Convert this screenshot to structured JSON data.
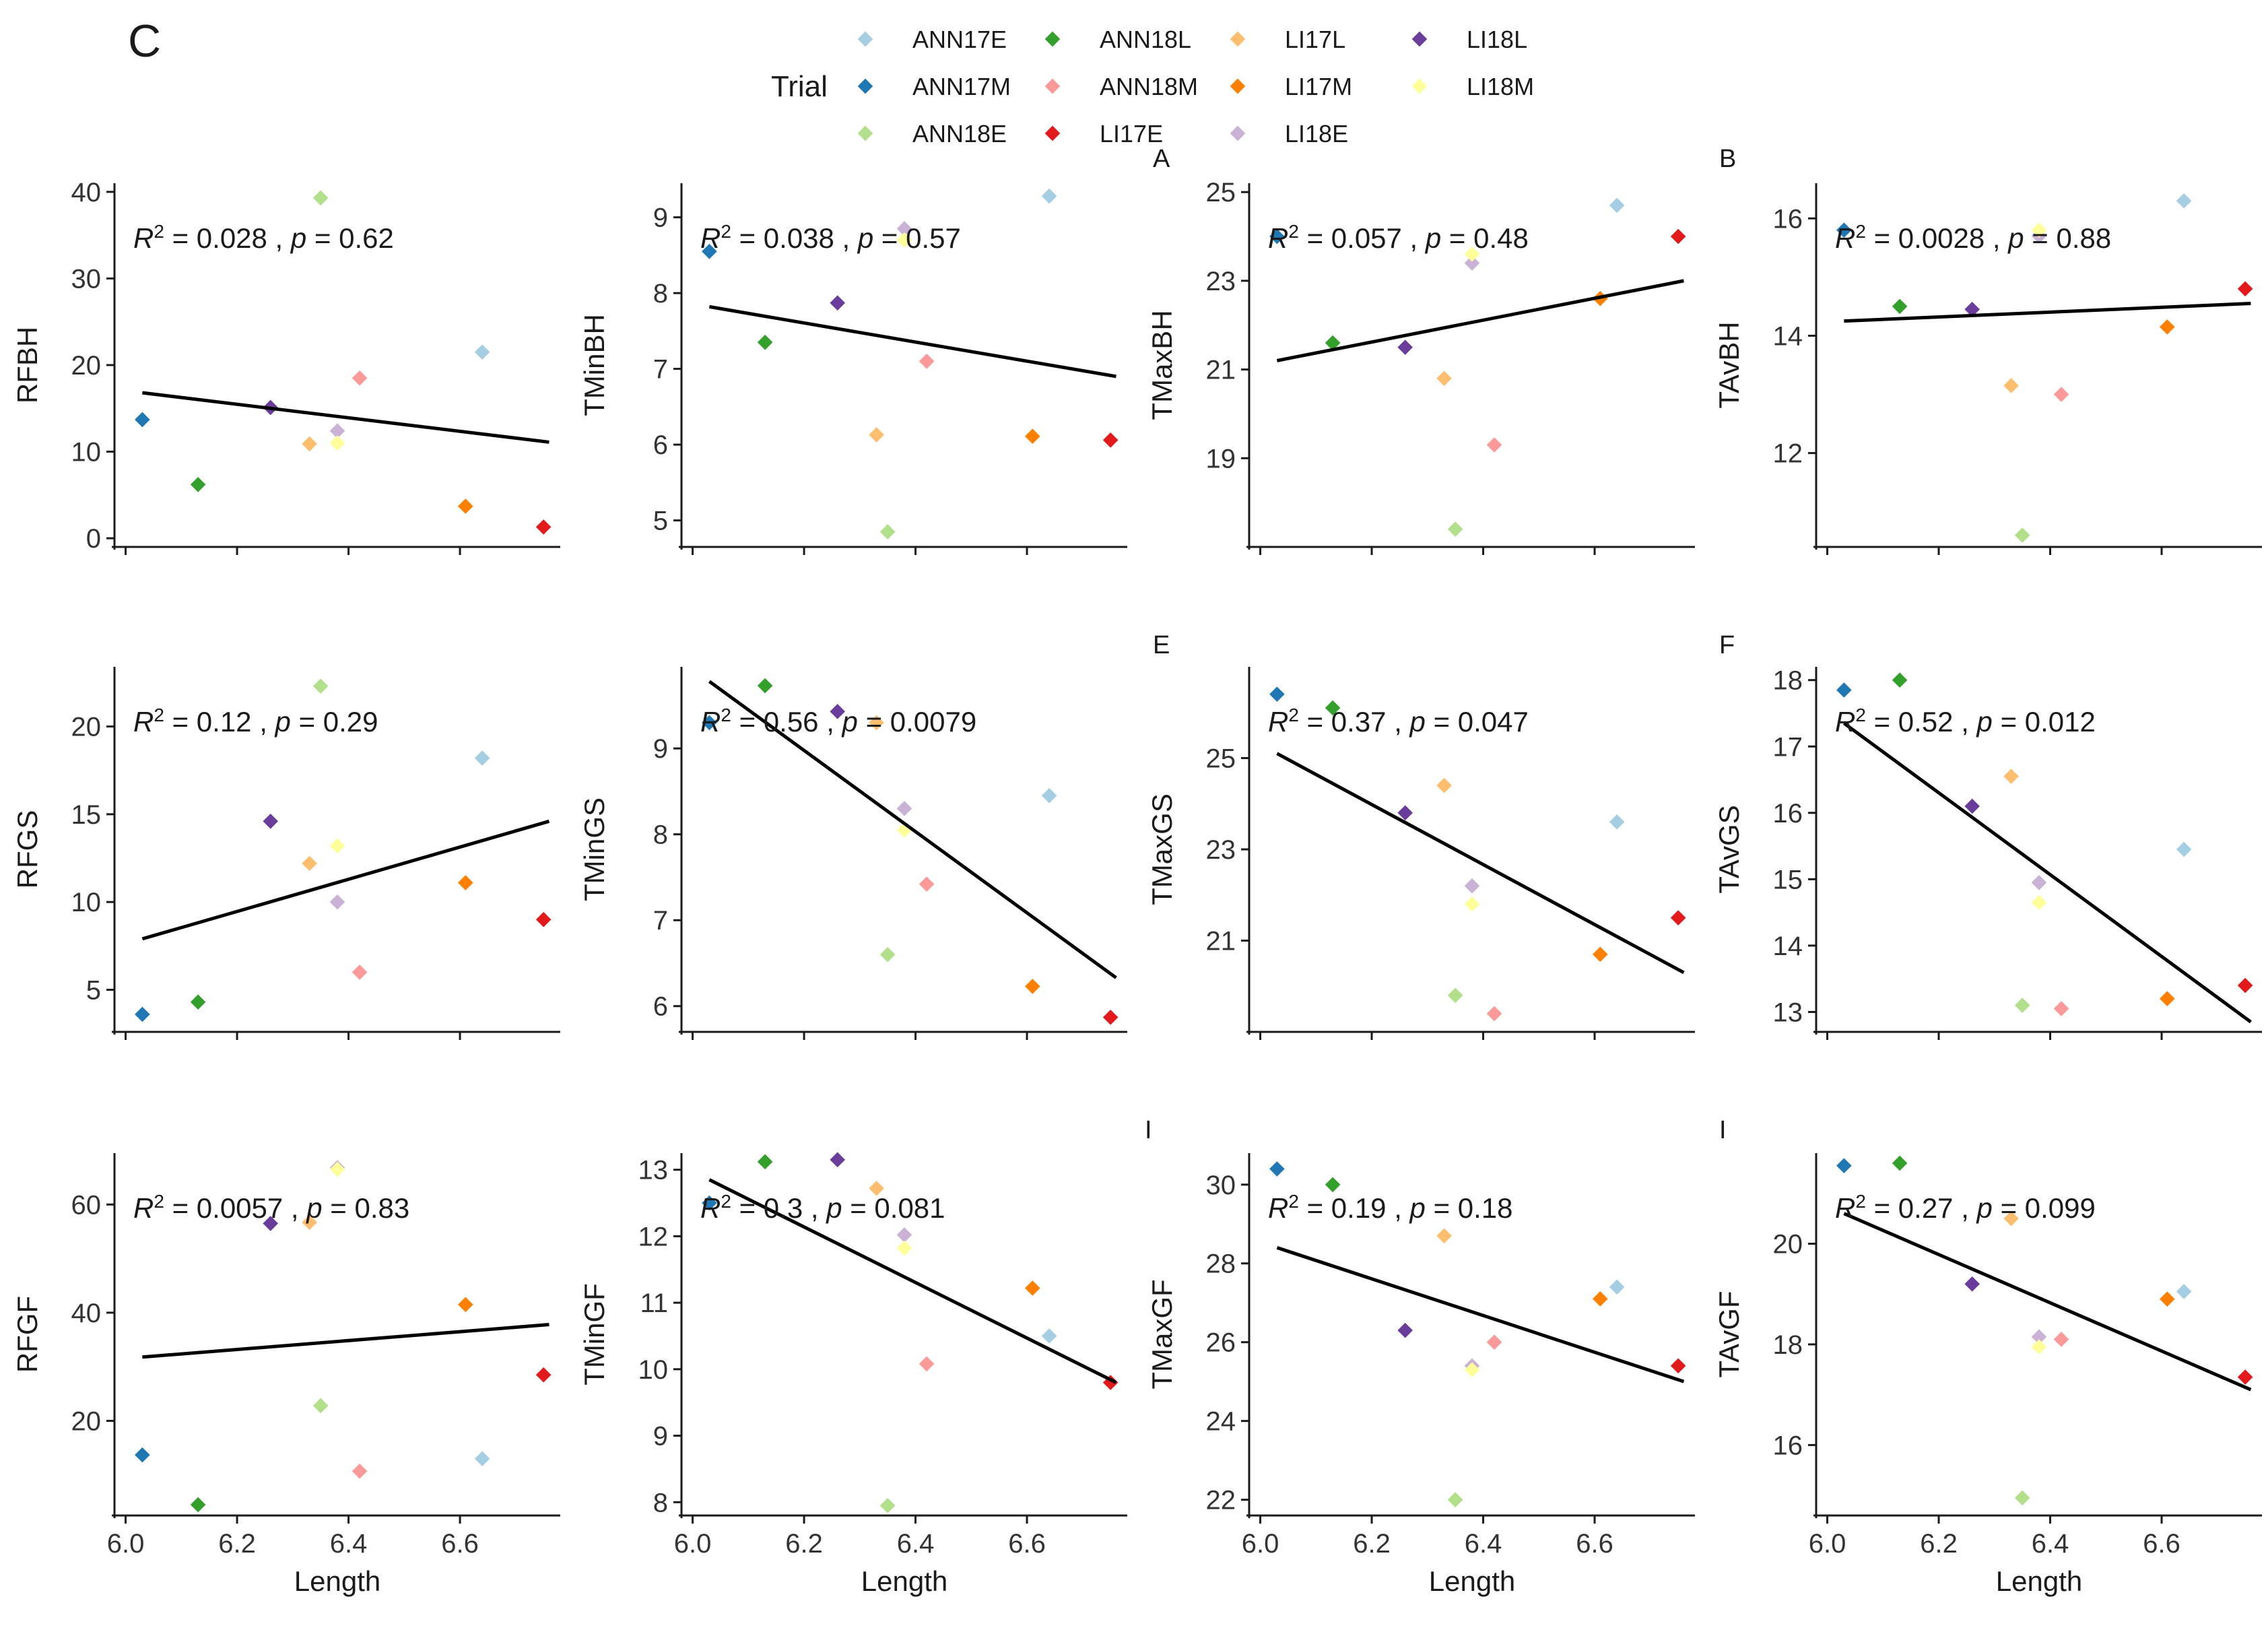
{
  "figure": {
    "panel_label": "C",
    "legend": {
      "title": "Trial",
      "entries": [
        {
          "name": "ANN17E",
          "color": "#a6cee3"
        },
        {
          "name": "ANN17M",
          "color": "#1f78b4"
        },
        {
          "name": "ANN18E",
          "color": "#b2df8a"
        },
        {
          "name": "ANN18L",
          "color": "#33a02c"
        },
        {
          "name": "ANN18M",
          "color": "#fb9a99"
        },
        {
          "name": "LI17E",
          "color": "#e31a1c"
        },
        {
          "name": "LI17L",
          "color": "#fdbf6f"
        },
        {
          "name": "LI17M",
          "color": "#ff7f00"
        },
        {
          "name": "LI18E",
          "color": "#cab2d6"
        },
        {
          "name": "LI18L",
          "color": "#6a3d9a"
        },
        {
          "name": "LI18M",
          "color": "#ffff99"
        }
      ]
    },
    "stray_marks": [
      "A",
      "B",
      "E",
      "F",
      "I",
      "I"
    ]
  },
  "chart_data": [
    {
      "type": "scatter",
      "row": 0,
      "col": 0,
      "ylabel": "RFBH",
      "xlabel": "",
      "xlim": [
        5.98,
        6.78
      ],
      "ylim": [
        -1,
        41
      ],
      "yticks": [
        0,
        10,
        20,
        30,
        40
      ],
      "xticks": [
        6.0,
        6.2,
        6.4,
        6.6
      ],
      "show_xtick_labels": false,
      "annotation": {
        "r2": "0.028",
        "p": "0.62"
      },
      "fit": [
        [
          6.03,
          16.8
        ],
        [
          6.76,
          11.1
        ]
      ],
      "points": [
        [
          "ANN17E",
          6.64,
          21.5
        ],
        [
          "ANN17M",
          6.03,
          13.7
        ],
        [
          "ANN18E",
          6.35,
          39.3
        ],
        [
          "ANN18L",
          6.13,
          6.2
        ],
        [
          "ANN18M",
          6.42,
          18.5
        ],
        [
          "LI17E",
          6.75,
          1.3
        ],
        [
          "LI17L",
          6.33,
          10.9
        ],
        [
          "LI17M",
          6.61,
          3.7
        ],
        [
          "LI18E",
          6.38,
          12.4
        ],
        [
          "LI18L",
          6.26,
          15.1
        ],
        [
          "LI18M",
          6.38,
          11.0
        ]
      ]
    },
    {
      "type": "scatter",
      "row": 0,
      "col": 1,
      "ylabel": "TMinBH",
      "xlabel": "",
      "xlim": [
        5.98,
        6.78
      ],
      "ylim": [
        4.65,
        9.45
      ],
      "yticks": [
        5,
        6,
        7,
        8,
        9
      ],
      "xticks": [
        6.0,
        6.2,
        6.4,
        6.6
      ],
      "show_xtick_labels": false,
      "annotation": {
        "r2": "0.038",
        "p": "0.57"
      },
      "fit": [
        [
          6.03,
          7.82
        ],
        [
          6.76,
          6.9
        ]
      ],
      "points": [
        [
          "ANN17E",
          6.64,
          9.28
        ],
        [
          "ANN17M",
          6.03,
          8.55
        ],
        [
          "ANN18E",
          6.35,
          4.85
        ],
        [
          "ANN18L",
          6.13,
          7.35
        ],
        [
          "ANN18M",
          6.42,
          7.1
        ],
        [
          "LI17E",
          6.75,
          6.06
        ],
        [
          "LI17L",
          6.33,
          6.13
        ],
        [
          "LI17M",
          6.61,
          6.11
        ],
        [
          "LI18E",
          6.38,
          8.85
        ],
        [
          "LI18L",
          6.26,
          7.87
        ],
        [
          "LI18M",
          6.38,
          8.7
        ]
      ]
    },
    {
      "type": "scatter",
      "row": 0,
      "col": 2,
      "ylabel": "TMaxBH",
      "xlabel": "",
      "xlim": [
        5.98,
        6.78
      ],
      "ylim": [
        17.0,
        25.2
      ],
      "yticks": [
        19,
        21,
        23,
        25
      ],
      "xticks": [
        6.0,
        6.2,
        6.4,
        6.6
      ],
      "show_xtick_labels": false,
      "annotation": {
        "r2": "0.057",
        "p": "0.48"
      },
      "fit": [
        [
          6.03,
          21.2
        ],
        [
          6.76,
          23.0
        ]
      ],
      "points": [
        [
          "ANN17E",
          6.64,
          24.7
        ],
        [
          "ANN17M",
          6.03,
          24.0
        ],
        [
          "ANN18E",
          6.35,
          17.4
        ],
        [
          "ANN18L",
          6.13,
          21.6
        ],
        [
          "ANN18M",
          6.42,
          19.3
        ],
        [
          "LI17E",
          6.75,
          24.0
        ],
        [
          "LI17L",
          6.33,
          20.8
        ],
        [
          "LI17M",
          6.61,
          22.6
        ],
        [
          "LI18E",
          6.38,
          23.4
        ],
        [
          "LI18L",
          6.26,
          21.5
        ],
        [
          "LI18M",
          6.38,
          23.6
        ]
      ]
    },
    {
      "type": "scatter",
      "row": 0,
      "col": 3,
      "ylabel": "TAvBH",
      "xlabel": "",
      "xlim": [
        5.98,
        6.78
      ],
      "ylim": [
        10.4,
        16.6
      ],
      "yticks": [
        12,
        14,
        16
      ],
      "xticks": [
        6.0,
        6.2,
        6.4,
        6.6
      ],
      "show_xtick_labels": false,
      "annotation": {
        "r2": "0.0028",
        "p": "0.88"
      },
      "fit": [
        [
          6.03,
          14.25
        ],
        [
          6.76,
          14.55
        ]
      ],
      "points": [
        [
          "ANN17E",
          6.64,
          16.3
        ],
        [
          "ANN17M",
          6.03,
          15.8
        ],
        [
          "ANN18E",
          6.35,
          10.6
        ],
        [
          "ANN18L",
          6.13,
          14.5
        ],
        [
          "ANN18M",
          6.42,
          13.0
        ],
        [
          "LI17E",
          6.75,
          14.8
        ],
        [
          "LI17L",
          6.33,
          13.15
        ],
        [
          "LI17M",
          6.61,
          14.15
        ],
        [
          "LI18E",
          6.38,
          15.7
        ],
        [
          "LI18L",
          6.26,
          14.45
        ],
        [
          "LI18M",
          6.38,
          15.8
        ]
      ]
    },
    {
      "type": "scatter",
      "row": 1,
      "col": 0,
      "ylabel": "RFGS",
      "xlabel": "",
      "xlim": [
        5.98,
        6.78
      ],
      "ylim": [
        2.6,
        23.4
      ],
      "yticks": [
        5,
        10,
        15,
        20
      ],
      "xticks": [
        6.0,
        6.2,
        6.4,
        6.6
      ],
      "show_xtick_labels": false,
      "annotation": {
        "r2": "0.12",
        "p": "0.29"
      },
      "fit": [
        [
          6.03,
          7.9
        ],
        [
          6.76,
          14.6
        ]
      ],
      "points": [
        [
          "ANN17E",
          6.64,
          18.2
        ],
        [
          "ANN17M",
          6.03,
          3.6
        ],
        [
          "ANN18E",
          6.35,
          22.3
        ],
        [
          "ANN18L",
          6.13,
          4.3
        ],
        [
          "ANN18M",
          6.42,
          6.0
        ],
        [
          "LI17E",
          6.75,
          9.0
        ],
        [
          "LI17L",
          6.33,
          12.2
        ],
        [
          "LI17M",
          6.61,
          11.1
        ],
        [
          "LI18E",
          6.38,
          10.0
        ],
        [
          "LI18L",
          6.26,
          14.6
        ],
        [
          "LI18M",
          6.38,
          13.2
        ]
      ]
    },
    {
      "type": "scatter",
      "row": 1,
      "col": 1,
      "ylabel": "TMinGS",
      "xlabel": "",
      "xlim": [
        5.98,
        6.78
      ],
      "ylim": [
        5.7,
        9.95
      ],
      "yticks": [
        6,
        7,
        8,
        9
      ],
      "xticks": [
        6.0,
        6.2,
        6.4,
        6.6
      ],
      "show_xtick_labels": false,
      "annotation": {
        "r2": "0.56",
        "p": "0.0079"
      },
      "fit": [
        [
          6.03,
          9.78
        ],
        [
          6.76,
          6.33
        ]
      ],
      "points": [
        [
          "ANN17E",
          6.64,
          8.45
        ],
        [
          "ANN17M",
          6.03,
          9.3
        ],
        [
          "ANN18E",
          6.35,
          6.6
        ],
        [
          "ANN18L",
          6.13,
          9.73
        ],
        [
          "ANN18M",
          6.42,
          7.42
        ],
        [
          "LI17E",
          6.75,
          5.87
        ],
        [
          "LI17L",
          6.33,
          9.3
        ],
        [
          "LI17M",
          6.61,
          6.23
        ],
        [
          "LI18E",
          6.38,
          8.3
        ],
        [
          "LI18L",
          6.26,
          9.43
        ],
        [
          "LI18M",
          6.38,
          8.05
        ]
      ]
    },
    {
      "type": "scatter",
      "row": 1,
      "col": 2,
      "ylabel": "TMaxGS",
      "xlabel": "",
      "xlim": [
        5.98,
        6.78
      ],
      "ylim": [
        19.0,
        27.0
      ],
      "yticks": [
        21,
        23,
        25
      ],
      "xticks": [
        6.0,
        6.2,
        6.4,
        6.6
      ],
      "show_xtick_labels": false,
      "annotation": {
        "r2": "0.37",
        "p": "0.047"
      },
      "fit": [
        [
          6.03,
          25.1
        ],
        [
          6.76,
          20.3
        ]
      ],
      "points": [
        [
          "ANN17E",
          6.64,
          23.6
        ],
        [
          "ANN17M",
          6.03,
          26.4
        ],
        [
          "ANN18E",
          6.35,
          19.8
        ],
        [
          "ANN18L",
          6.13,
          26.1
        ],
        [
          "ANN18M",
          6.42,
          19.4
        ],
        [
          "LI17E",
          6.75,
          21.5
        ],
        [
          "LI17L",
          6.33,
          24.4
        ],
        [
          "LI17M",
          6.61,
          20.7
        ],
        [
          "LI18E",
          6.38,
          22.2
        ],
        [
          "LI18L",
          6.26,
          23.8
        ],
        [
          "LI18M",
          6.38,
          21.8
        ]
      ]
    },
    {
      "type": "scatter",
      "row": 1,
      "col": 3,
      "ylabel": "TAvGS",
      "xlabel": "",
      "xlim": [
        5.98,
        6.78
      ],
      "ylim": [
        12.7,
        18.2
      ],
      "yticks": [
        13,
        14,
        15,
        16,
        17,
        18
      ],
      "xticks": [
        6.0,
        6.2,
        6.4,
        6.6
      ],
      "show_xtick_labels": false,
      "annotation": {
        "r2": "0.52",
        "p": "0.012"
      },
      "fit": [
        [
          6.03,
          17.35
        ],
        [
          6.76,
          12.85
        ]
      ],
      "points": [
        [
          "ANN17E",
          6.64,
          15.45
        ],
        [
          "ANN17M",
          6.03,
          17.85
        ],
        [
          "ANN18E",
          6.35,
          13.1
        ],
        [
          "ANN18L",
          6.13,
          18.0
        ],
        [
          "ANN18M",
          6.42,
          13.05
        ],
        [
          "LI17E",
          6.75,
          13.4
        ],
        [
          "LI17L",
          6.33,
          16.55
        ],
        [
          "LI17M",
          6.61,
          13.2
        ],
        [
          "LI18E",
          6.38,
          14.95
        ],
        [
          "LI18L",
          6.26,
          16.1
        ],
        [
          "LI18M",
          6.38,
          14.65
        ]
      ]
    },
    {
      "type": "scatter",
      "row": 2,
      "col": 0,
      "ylabel": "RFGF",
      "xlabel": "Length",
      "xlim": [
        5.98,
        6.78
      ],
      "ylim": [
        2.5,
        69.5
      ],
      "yticks": [
        20,
        40,
        60
      ],
      "xticks": [
        6.0,
        6.2,
        6.4,
        6.6
      ],
      "show_xtick_labels": true,
      "annotation": {
        "r2": "0.0057",
        "p": "0.83"
      },
      "fit": [
        [
          6.03,
          31.8
        ],
        [
          6.76,
          37.8
        ]
      ],
      "points": [
        [
          "ANN17E",
          6.64,
          13.0
        ],
        [
          "ANN17M",
          6.03,
          13.7
        ],
        [
          "ANN18E",
          6.35,
          22.8
        ],
        [
          "ANN18L",
          6.13,
          4.5
        ],
        [
          "ANN18M",
          6.42,
          10.7
        ],
        [
          "LI17E",
          6.75,
          28.5
        ],
        [
          "LI17L",
          6.33,
          56.7
        ],
        [
          "LI17M",
          6.61,
          41.5
        ],
        [
          "LI18E",
          6.38,
          66.8
        ],
        [
          "LI18L",
          6.26,
          56.5
        ],
        [
          "LI18M",
          6.38,
          66.5
        ]
      ]
    },
    {
      "type": "scatter",
      "row": 2,
      "col": 1,
      "ylabel": "TMinGF",
      "xlabel": "Length",
      "xlim": [
        5.98,
        6.78
      ],
      "ylim": [
        7.8,
        13.25
      ],
      "yticks": [
        8,
        9,
        10,
        11,
        12,
        13
      ],
      "xticks": [
        6.0,
        6.2,
        6.4,
        6.6
      ],
      "show_xtick_labels": true,
      "annotation": {
        "r2": "0.3",
        "p": "0.081"
      },
      "fit": [
        [
          6.03,
          12.85
        ],
        [
          6.76,
          9.8
        ]
      ],
      "points": [
        [
          "ANN17E",
          6.64,
          10.5
        ],
        [
          "ANN17M",
          6.03,
          12.5
        ],
        [
          "ANN18E",
          6.35,
          7.95
        ],
        [
          "ANN18L",
          6.13,
          13.12
        ],
        [
          "ANN18M",
          6.42,
          10.08
        ],
        [
          "LI17E",
          6.75,
          9.8
        ],
        [
          "LI17L",
          6.33,
          12.72
        ],
        [
          "LI17M",
          6.61,
          11.22
        ],
        [
          "LI18E",
          6.38,
          12.02
        ],
        [
          "LI18L",
          6.26,
          13.15
        ],
        [
          "LI18M",
          6.38,
          11.82
        ]
      ]
    },
    {
      "type": "scatter",
      "row": 2,
      "col": 2,
      "ylabel": "TMaxGF",
      "xlabel": "Length",
      "xlim": [
        5.98,
        6.78
      ],
      "ylim": [
        21.6,
        30.8
      ],
      "yticks": [
        22,
        24,
        26,
        28,
        30
      ],
      "xticks": [
        6.0,
        6.2,
        6.4,
        6.6
      ],
      "show_xtick_labels": true,
      "annotation": {
        "r2": "0.19",
        "p": "0.18"
      },
      "fit": [
        [
          6.03,
          28.4
        ],
        [
          6.76,
          25.0
        ]
      ],
      "points": [
        [
          "ANN17E",
          6.64,
          27.4
        ],
        [
          "ANN17M",
          6.03,
          30.4
        ],
        [
          "ANN18E",
          6.35,
          22.0
        ],
        [
          "ANN18L",
          6.13,
          30.0
        ],
        [
          "ANN18M",
          6.42,
          26.0
        ],
        [
          "LI17E",
          6.75,
          25.4
        ],
        [
          "LI17L",
          6.33,
          28.7
        ],
        [
          "LI17M",
          6.61,
          27.1
        ],
        [
          "LI18E",
          6.38,
          25.4
        ],
        [
          "LI18L",
          6.26,
          26.3
        ],
        [
          "LI18M",
          6.38,
          25.3
        ]
      ]
    },
    {
      "type": "scatter",
      "row": 2,
      "col": 3,
      "ylabel": "TAvGF",
      "xlabel": "Length",
      "xlim": [
        5.98,
        6.78
      ],
      "ylim": [
        14.6,
        21.8
      ],
      "yticks": [
        16,
        18,
        20
      ],
      "xticks": [
        6.0,
        6.2,
        6.4,
        6.6
      ],
      "show_xtick_labels": true,
      "annotation": {
        "r2": "0.27",
        "p": "0.099"
      },
      "fit": [
        [
          6.03,
          20.6
        ],
        [
          6.76,
          17.1
        ]
      ],
      "points": [
        [
          "ANN17E",
          6.64,
          19.05
        ],
        [
          "ANN17M",
          6.03,
          21.55
        ],
        [
          "ANN18E",
          6.35,
          14.95
        ],
        [
          "ANN18L",
          6.13,
          21.6
        ],
        [
          "ANN18M",
          6.42,
          18.1
        ],
        [
          "LI17E",
          6.75,
          17.35
        ],
        [
          "LI17L",
          6.33,
          20.5
        ],
        [
          "LI17M",
          6.61,
          18.9
        ],
        [
          "LI18E",
          6.38,
          18.15
        ],
        [
          "LI18L",
          6.26,
          19.2
        ],
        [
          "LI18M",
          6.38,
          17.95
        ]
      ]
    }
  ]
}
